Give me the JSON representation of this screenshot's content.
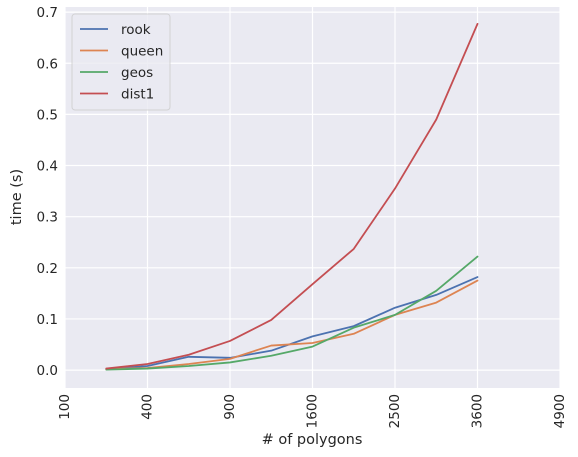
{
  "chart_data": {
    "type": "line",
    "title": "",
    "xlabel": "# of polygons",
    "ylabel": "time (s)",
    "x_scale": "sqrt",
    "xlim": [
      100,
      4900
    ],
    "ylim": [
      -0.035,
      0.71
    ],
    "x_ticks": [
      100,
      400,
      900,
      1600,
      2500,
      3600,
      4900
    ],
    "y_ticks": [
      0.0,
      0.1,
      0.2,
      0.3,
      0.4,
      0.5,
      0.6,
      0.7
    ],
    "y_tick_labels": [
      "0.0",
      "0.1",
      "0.2",
      "0.3",
      "0.4",
      "0.5",
      "0.6",
      "0.7"
    ],
    "grid": true,
    "legend_position": "top-left",
    "x": [
      225,
      400,
      625,
      900,
      1225,
      1600,
      2025,
      2500,
      3025,
      3600
    ],
    "series": [
      {
        "name": "rook",
        "color": "#4c72b0",
        "values": [
          0.002,
          0.008,
          0.026,
          0.024,
          0.038,
          0.066,
          0.086,
          0.122,
          0.147,
          0.182
        ]
      },
      {
        "name": "queen",
        "color": "#dd8452",
        "values": [
          0.002,
          0.004,
          0.012,
          0.022,
          0.048,
          0.053,
          0.071,
          0.108,
          0.132,
          0.175
        ]
      },
      {
        "name": "geos",
        "color": "#55a868",
        "values": [
          0.001,
          0.003,
          0.008,
          0.015,
          0.028,
          0.046,
          0.083,
          0.108,
          0.155,
          0.222
        ]
      },
      {
        "name": "dist1",
        "color": "#c44e52",
        "values": [
          0.003,
          0.012,
          0.03,
          0.057,
          0.098,
          0.168,
          0.237,
          0.355,
          0.49,
          0.677
        ]
      }
    ]
  }
}
